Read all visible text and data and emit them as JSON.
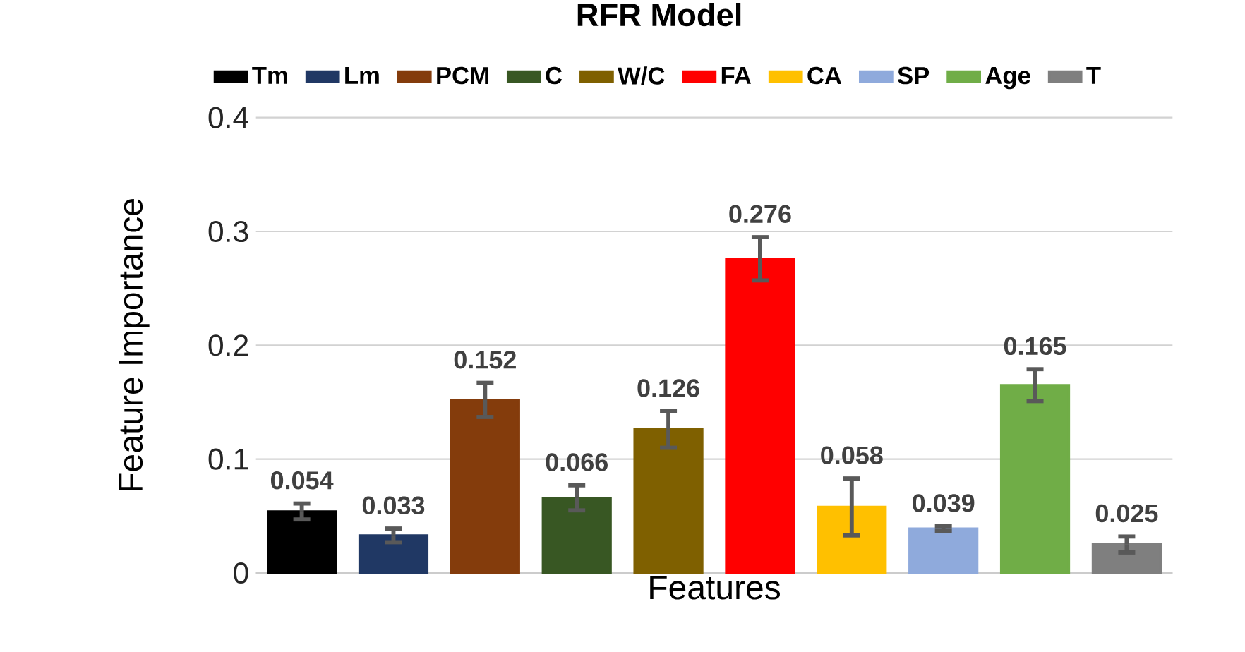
{
  "chart_data": {
    "type": "bar",
    "title": "RFR Model",
    "xlabel": "Features",
    "ylabel": "Feature Importance",
    "categories": [
      null,
      null,
      null,
      null,
      null,
      null,
      null,
      null,
      null,
      null
    ],
    "series": [
      {
        "name": "Tm",
        "color": "#000000",
        "values": [
          0.054,
          null,
          null,
          null,
          null,
          null,
          null,
          null,
          null,
          null
        ],
        "errors": [
          0.007,
          null,
          null,
          null,
          null,
          null,
          null,
          null,
          null,
          null
        ]
      },
      {
        "name": "Lm",
        "color": "#203864",
        "values": [
          null,
          0.033,
          null,
          null,
          null,
          null,
          null,
          null,
          null,
          null
        ],
        "errors": [
          null,
          0.006,
          null,
          null,
          null,
          null,
          null,
          null,
          null,
          null
        ]
      },
      {
        "name": "PCM",
        "color": "#843c0c",
        "values": [
          null,
          null,
          0.152,
          null,
          null,
          null,
          null,
          null,
          null,
          null
        ],
        "errors": [
          null,
          null,
          0.015,
          null,
          null,
          null,
          null,
          null,
          null,
          null
        ]
      },
      {
        "name": "C",
        "color": "#385723",
        "values": [
          null,
          null,
          null,
          0.066,
          null,
          null,
          null,
          null,
          null,
          null
        ],
        "errors": [
          null,
          null,
          null,
          0.011,
          null,
          null,
          null,
          null,
          null,
          null
        ]
      },
      {
        "name": "W/C",
        "color": "#7f6000",
        "values": [
          null,
          null,
          null,
          null,
          0.126,
          null,
          null,
          null,
          null,
          null
        ],
        "errors": [
          null,
          null,
          null,
          null,
          0.016,
          null,
          null,
          null,
          null,
          null
        ]
      },
      {
        "name": "FA",
        "color": "#ff0000",
        "values": [
          null,
          null,
          null,
          null,
          null,
          0.276,
          null,
          null,
          null,
          null
        ],
        "errors": [
          null,
          null,
          null,
          null,
          null,
          0.019,
          null,
          null,
          null,
          null
        ]
      },
      {
        "name": "CA",
        "color": "#ffc000",
        "values": [
          null,
          null,
          null,
          null,
          null,
          null,
          0.058,
          null,
          null,
          null
        ],
        "errors": [
          null,
          null,
          null,
          null,
          null,
          null,
          0.025,
          null,
          null,
          null
        ]
      },
      {
        "name": "SP",
        "color": "#8faadc",
        "values": [
          null,
          null,
          null,
          null,
          null,
          null,
          null,
          0.039,
          null,
          null
        ],
        "errors": [
          null,
          null,
          null,
          null,
          null,
          null,
          null,
          0.002,
          null,
          null
        ]
      },
      {
        "name": "Age",
        "color": "#70ad47",
        "values": [
          null,
          null,
          null,
          null,
          null,
          null,
          null,
          null,
          0.165,
          null
        ],
        "errors": [
          null,
          null,
          null,
          null,
          null,
          null,
          null,
          null,
          0.014,
          null
        ]
      },
      {
        "name": "T",
        "color": "#7f7f7f",
        "values": [
          null,
          null,
          null,
          null,
          null,
          null,
          null,
          null,
          null,
          0.025
        ],
        "errors": [
          null,
          null,
          null,
          null,
          null,
          null,
          null,
          null,
          null,
          0.007
        ]
      }
    ],
    "ylim": [
      0,
      0.4
    ],
    "yticks": [
      0,
      0.1,
      0.2,
      0.3,
      0.4
    ],
    "grid": "y",
    "legend": "top",
    "tick_labels": "y",
    "data_labels": true
  }
}
